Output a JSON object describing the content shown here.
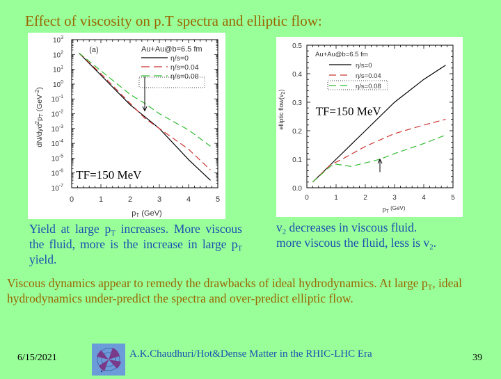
{
  "slide": {
    "title": "Effect of viscosity on p.T spectra and elliptic flow:",
    "background_color": "#99ff99",
    "title_color": "#996600",
    "body_blue_color": "#1a4fb0"
  },
  "left_caption": {
    "line1_pre": "Yield at large p",
    "line1_sub": "T",
    "line1_post": " increases. More viscous the fluid, more is the increase in large p",
    "line2_sub": "T",
    "line2_post": " yield."
  },
  "right_caption": {
    "line1_pre": "v",
    "line1_sub": "2",
    "line1_post": " decreases in viscous fluid.",
    "line2_pre": "more viscous the fluid, less is v",
    "line2_sub": "2",
    "line2_post": "."
  },
  "summary": {
    "pre": "Viscous dynamics appear to remedy the drawbacks of ideal hydrodynamics. At large p",
    "sub": "T",
    "post": ", ideal hydrodynamics under-predict the spectra and over-predict elliptic flow."
  },
  "footer": {
    "date": "6/15/2021",
    "credit": "A.K.Chaudhuri/Hot&Dense Matter in the RHIC-LHC Era",
    "page_number": "39",
    "logo_icon": "fan-logo-icon"
  },
  "chart_data": [
    {
      "type": "line",
      "title": "(a)",
      "annotation": "TF=150 MeV",
      "legend_title": "Au+Au@b=6.5 fm",
      "xlabel": "pT (GeV)",
      "ylabel": "dN/dyd2pT (GeV-2)",
      "xlim": [
        0,
        5
      ],
      "ylim": [
        1e-07,
        1000.0
      ],
      "yscale": "log",
      "x_ticks": [
        "0",
        "1",
        "2",
        "3",
        "4",
        "5"
      ],
      "y_ticks": [
        "10^3",
        "10^2",
        "10^1",
        "10^0",
        "10^-1",
        "10^-2",
        "10^-3",
        "10^-4",
        "10^-5",
        "10^-6",
        "10^-7"
      ],
      "arrow_at_x": 2.5,
      "legend_position": "upper right",
      "series": [
        {
          "name": "η/s=0",
          "color": "#000000",
          "style": "solid",
          "x": [
            0.25,
            1,
            2,
            3,
            4,
            4.75
          ],
          "log10_y": [
            2.1,
            0.6,
            -1.4,
            -3.0,
            -5.1,
            -6.5
          ]
        },
        {
          "name": "η/s=0.04",
          "color": "#cc3333",
          "style": "dashed",
          "x": [
            0.25,
            1,
            2,
            2.5,
            3,
            4,
            4.75
          ],
          "log10_y": [
            2.1,
            0.7,
            -1.3,
            -2.3,
            -3.0,
            -4.4,
            -5.8
          ]
        },
        {
          "name": "η/s=0.08",
          "color": "#33bb33",
          "style": "dashed",
          "x": [
            0.25,
            1,
            2,
            2.5,
            3,
            4,
            4.75
          ],
          "log10_y": [
            2.1,
            0.9,
            -0.7,
            -1.3,
            -2.0,
            -3.1,
            -4.2
          ]
        }
      ]
    },
    {
      "type": "line",
      "annotation": "TF=150 MeV",
      "legend_title": "Au+Au@b=6.5 fm",
      "xlabel": "pT (GeV)",
      "ylabel": "elliptic flow(v2)",
      "xlim": [
        0,
        5
      ],
      "ylim": [
        0.0,
        0.5
      ],
      "x_ticks": [
        "0",
        "1",
        "2",
        "3",
        "4",
        "5"
      ],
      "y_ticks": [
        "0.0",
        "0.1",
        "0.2",
        "0.3",
        "0.4",
        "0.5"
      ],
      "arrow_at_x": 2.5,
      "legend_position": "upper left",
      "series": [
        {
          "name": "η/s=0",
          "color": "#000000",
          "style": "solid",
          "x": [
            0.2,
            1,
            2,
            3,
            4,
            4.75
          ],
          "y": [
            0.02,
            0.1,
            0.2,
            0.3,
            0.38,
            0.43
          ]
        },
        {
          "name": "η/s=0.04",
          "color": "#cc3333",
          "style": "dashed",
          "x": [
            0.2,
            0.8,
            1.2,
            2,
            3,
            4,
            4.75
          ],
          "y": [
            0.02,
            0.08,
            0.1,
            0.145,
            0.19,
            0.22,
            0.24
          ]
        },
        {
          "name": "η/s=0.08",
          "color": "#33bb33",
          "style": "dashed",
          "x": [
            0.2,
            0.8,
            1,
            1.5,
            2,
            2.5,
            3,
            4,
            4.75
          ],
          "y": [
            0.02,
            0.075,
            0.083,
            0.075,
            0.087,
            0.1,
            0.12,
            0.155,
            0.185
          ]
        }
      ]
    }
  ]
}
